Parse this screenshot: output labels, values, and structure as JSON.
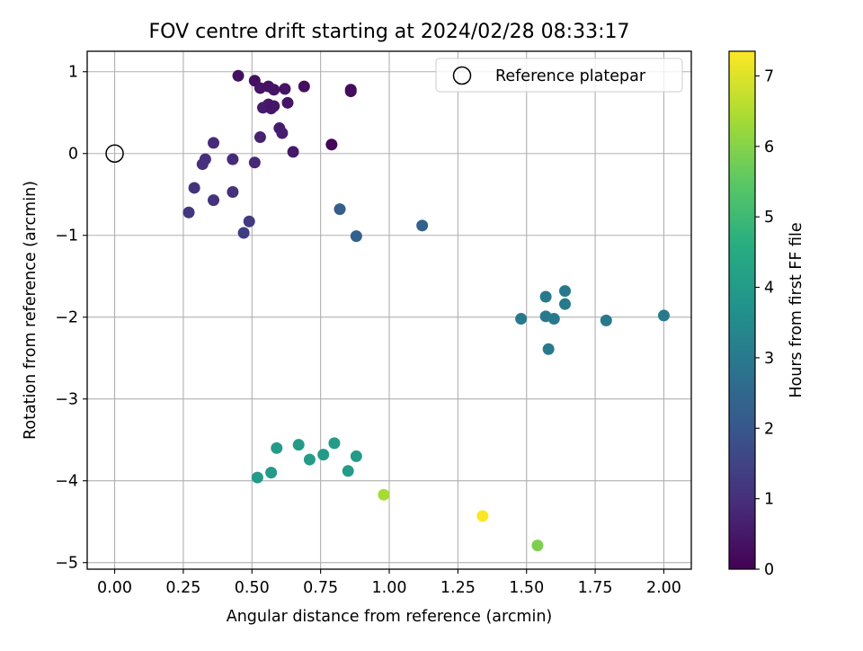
{
  "chart_data": {
    "type": "scatter",
    "title": "FOV centre drift starting at 2024/02/28 08:33:17",
    "xlabel": "Angular distance from reference (arcmin)",
    "ylabel": "Rotation from reference (arcmin)",
    "xlim": [
      -0.1,
      2.1
    ],
    "ylim": [
      -5.08,
      1.25
    ],
    "xticks": [
      0.0,
      0.25,
      0.5,
      0.75,
      1.0,
      1.25,
      1.5,
      1.75,
      2.0
    ],
    "xtick_labels": [
      "0.00",
      "0.25",
      "0.50",
      "0.75",
      "1.00",
      "1.25",
      "1.50",
      "1.75",
      "2.00"
    ],
    "yticks": [
      -5,
      -4,
      -3,
      -2,
      -1,
      0,
      1
    ],
    "ytick_labels": [
      "−5",
      "−4",
      "−3",
      "−2",
      "−1",
      "0",
      "1"
    ],
    "grid": true,
    "legend": {
      "position": "top-right",
      "label": "Reference platepar"
    },
    "reference_point": {
      "x": 0.0,
      "y": 0.0
    },
    "colorbar": {
      "label": "Hours from first FF file",
      "colormap": "viridis",
      "range": [
        0,
        7.35
      ],
      "ticks": [
        0,
        1,
        2,
        3,
        4,
        5,
        6,
        7
      ],
      "tick_labels": [
        "0",
        "1",
        "2",
        "3",
        "4",
        "5",
        "6",
        "7"
      ]
    },
    "points": [
      {
        "x": 0.45,
        "y": 0.95,
        "c": 0.3
      },
      {
        "x": 0.51,
        "y": 0.89,
        "c": 0.3
      },
      {
        "x": 0.53,
        "y": 0.8,
        "c": 0.4
      },
      {
        "x": 0.56,
        "y": 0.82,
        "c": 0.35
      },
      {
        "x": 0.58,
        "y": 0.78,
        "c": 0.4
      },
      {
        "x": 0.62,
        "y": 0.79,
        "c": 0.4
      },
      {
        "x": 0.69,
        "y": 0.82,
        "c": 0.3
      },
      {
        "x": 0.86,
        "y": 0.78,
        "c": 0.2
      },
      {
        "x": 0.86,
        "y": 0.76,
        "c": 0.25
      },
      {
        "x": 0.56,
        "y": 0.6,
        "c": 0.5
      },
      {
        "x": 0.54,
        "y": 0.56,
        "c": 0.55
      },
      {
        "x": 0.57,
        "y": 0.55,
        "c": 0.5
      },
      {
        "x": 0.58,
        "y": 0.58,
        "c": 0.45
      },
      {
        "x": 0.63,
        "y": 0.62,
        "c": 0.45
      },
      {
        "x": 0.6,
        "y": 0.31,
        "c": 0.6
      },
      {
        "x": 0.61,
        "y": 0.25,
        "c": 0.6
      },
      {
        "x": 0.53,
        "y": 0.2,
        "c": 0.7
      },
      {
        "x": 0.79,
        "y": 0.11,
        "c": 0.1
      },
      {
        "x": 0.65,
        "y": 0.02,
        "c": 0.5
      },
      {
        "x": 0.36,
        "y": 0.13,
        "c": 0.9
      },
      {
        "x": 0.33,
        "y": -0.07,
        "c": 1.0
      },
      {
        "x": 0.32,
        "y": -0.13,
        "c": 1.0
      },
      {
        "x": 0.43,
        "y": -0.07,
        "c": 0.9
      },
      {
        "x": 0.51,
        "y": -0.11,
        "c": 0.85
      },
      {
        "x": 0.29,
        "y": -0.42,
        "c": 1.1
      },
      {
        "x": 0.36,
        "y": -0.57,
        "c": 1.1
      },
      {
        "x": 0.43,
        "y": -0.47,
        "c": 1.05
      },
      {
        "x": 0.27,
        "y": -0.72,
        "c": 1.2
      },
      {
        "x": 0.49,
        "y": -0.83,
        "c": 1.3
      },
      {
        "x": 0.47,
        "y": -0.97,
        "c": 1.35
      },
      {
        "x": 0.82,
        "y": -0.68,
        "c": 2.2
      },
      {
        "x": 0.88,
        "y": -1.01,
        "c": 2.3
      },
      {
        "x": 1.12,
        "y": -0.88,
        "c": 2.3
      },
      {
        "x": 1.48,
        "y": -2.02,
        "c": 3.0
      },
      {
        "x": 1.57,
        "y": -1.75,
        "c": 3.0
      },
      {
        "x": 1.57,
        "y": -1.99,
        "c": 3.0
      },
      {
        "x": 1.6,
        "y": -2.02,
        "c": 3.0
      },
      {
        "x": 1.64,
        "y": -1.68,
        "c": 3.0
      },
      {
        "x": 1.64,
        "y": -1.84,
        "c": 3.0
      },
      {
        "x": 1.58,
        "y": -2.39,
        "c": 3.0
      },
      {
        "x": 1.79,
        "y": -2.04,
        "c": 3.0
      },
      {
        "x": 2.0,
        "y": -1.98,
        "c": 3.0
      },
      {
        "x": 0.59,
        "y": -3.6,
        "c": 4.0
      },
      {
        "x": 0.67,
        "y": -3.56,
        "c": 4.0
      },
      {
        "x": 0.71,
        "y": -3.74,
        "c": 4.0
      },
      {
        "x": 0.76,
        "y": -3.68,
        "c": 4.0
      },
      {
        "x": 0.8,
        "y": -3.54,
        "c": 4.0
      },
      {
        "x": 0.88,
        "y": -3.7,
        "c": 4.0
      },
      {
        "x": 0.85,
        "y": -3.88,
        "c": 4.0
      },
      {
        "x": 0.57,
        "y": -3.9,
        "c": 4.0
      },
      {
        "x": 0.52,
        "y": -3.96,
        "c": 4.0
      },
      {
        "x": 0.98,
        "y": -4.17,
        "c": 6.4
      },
      {
        "x": 1.34,
        "y": -4.43,
        "c": 7.35
      },
      {
        "x": 1.54,
        "y": -4.79,
        "c": 5.9
      }
    ]
  }
}
